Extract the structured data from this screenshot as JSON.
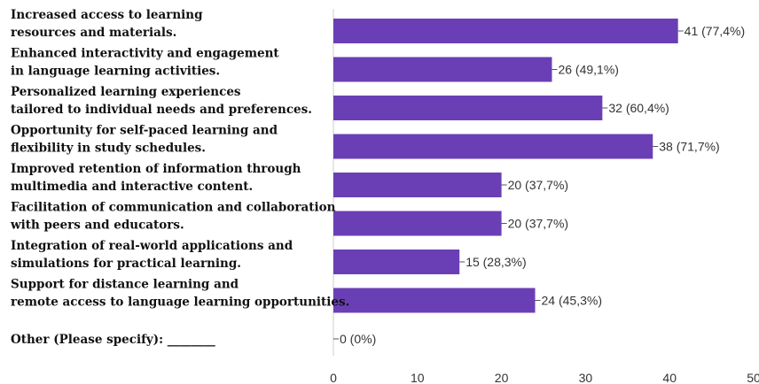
{
  "chart_data": {
    "type": "bar",
    "orientation": "horizontal",
    "categories": [
      [
        "Increased access to learning",
        "resources and materials."
      ],
      [
        "Enhanced interactivity and engagement",
        "in language learning activities."
      ],
      [
        "Personalized learning experiences",
        "tailored to individual needs and preferences."
      ],
      [
        "Opportunity for self-paced learning and",
        "flexibility in study schedules."
      ],
      [
        "Improved retention of information through",
        "multimedia and interactive content."
      ],
      [
        "Facilitation of communication and collaboration",
        "with peers and educators."
      ],
      [
        "Integration of real-world applications and",
        "simulations for practical learning."
      ],
      [
        "Support for distance learning and",
        "remote access to language learning opportunities."
      ],
      [
        "Other (Please specify): ________"
      ]
    ],
    "values": [
      41,
      26,
      32,
      38,
      20,
      20,
      15,
      24,
      0
    ],
    "data_labels": [
      "41 (77,4%)",
      "26 (49,1%)",
      "32 (60,4%)",
      "38 (71,7%)",
      "20 (37,7%)",
      "20 (37,7%)",
      "15 (28,3%)",
      "24 (45,3%)",
      "0 (0%)"
    ],
    "xlim": [
      0,
      50
    ],
    "xticks": [
      "0",
      "10",
      "20",
      "30",
      "40",
      "50"
    ],
    "bar_color": "#6a3fb5",
    "axis_color": "#cccccc",
    "grid": false
  }
}
